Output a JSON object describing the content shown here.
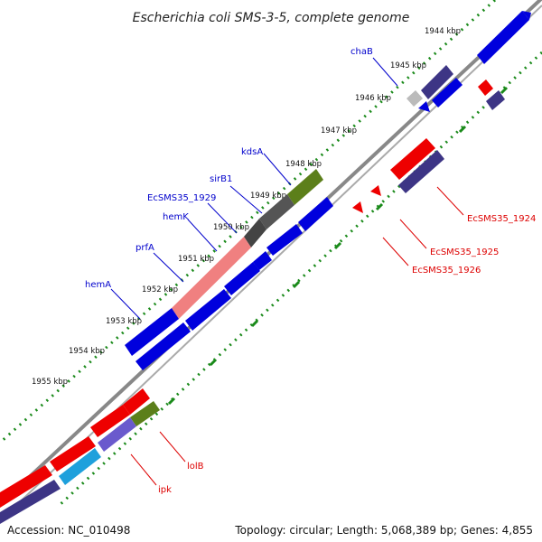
{
  "title": "Escherichia coli SMS-3-5, complete genome",
  "footer": {
    "accession": "Accession: NC_010498",
    "topology": "Topology: circular; Length: 5,068,389 bp; Genes: 4,855"
  },
  "colors": {
    "forward_gene": "#0000dd",
    "reverse_gene": "#ee0000",
    "dark_gene": "#3d3585",
    "gray_gene": "#555555",
    "olive_gene": "#5c7f1a",
    "pink_gene": "#f08080",
    "violet_gene": "#6a5acd",
    "cyan_gene": "#1ea0dc",
    "axis": "#888888",
    "tick_dots": "#1a8a1a",
    "forward_label": "#0000cc",
    "reverse_label": "#dd0000"
  },
  "ticks": [
    "1944 kbp",
    "1945 kbp",
    "1946 kbp",
    "1947 kbp",
    "1948 kbp",
    "1949 kbp",
    "1950 kbp",
    "1951 kbp",
    "1952 kbp",
    "1953 kbp",
    "1954 kbp",
    "1955 kbp"
  ],
  "gene_labels": {
    "chaB": "chaB",
    "kdsA": "kdsA",
    "sirB1": "sirB1",
    "EcSMS35_1929": "EcSMS35_1929",
    "hemK": "hemK",
    "prfA": "prfA",
    "hemA": "hemA",
    "EcSMS35_1924": "EcSMS35_1924",
    "EcSMS35_1925": "EcSMS35_1925",
    "EcSMS35_1926": "EcSMS35_1926",
    "lolB": "lolB",
    "ipk": "ipk"
  }
}
